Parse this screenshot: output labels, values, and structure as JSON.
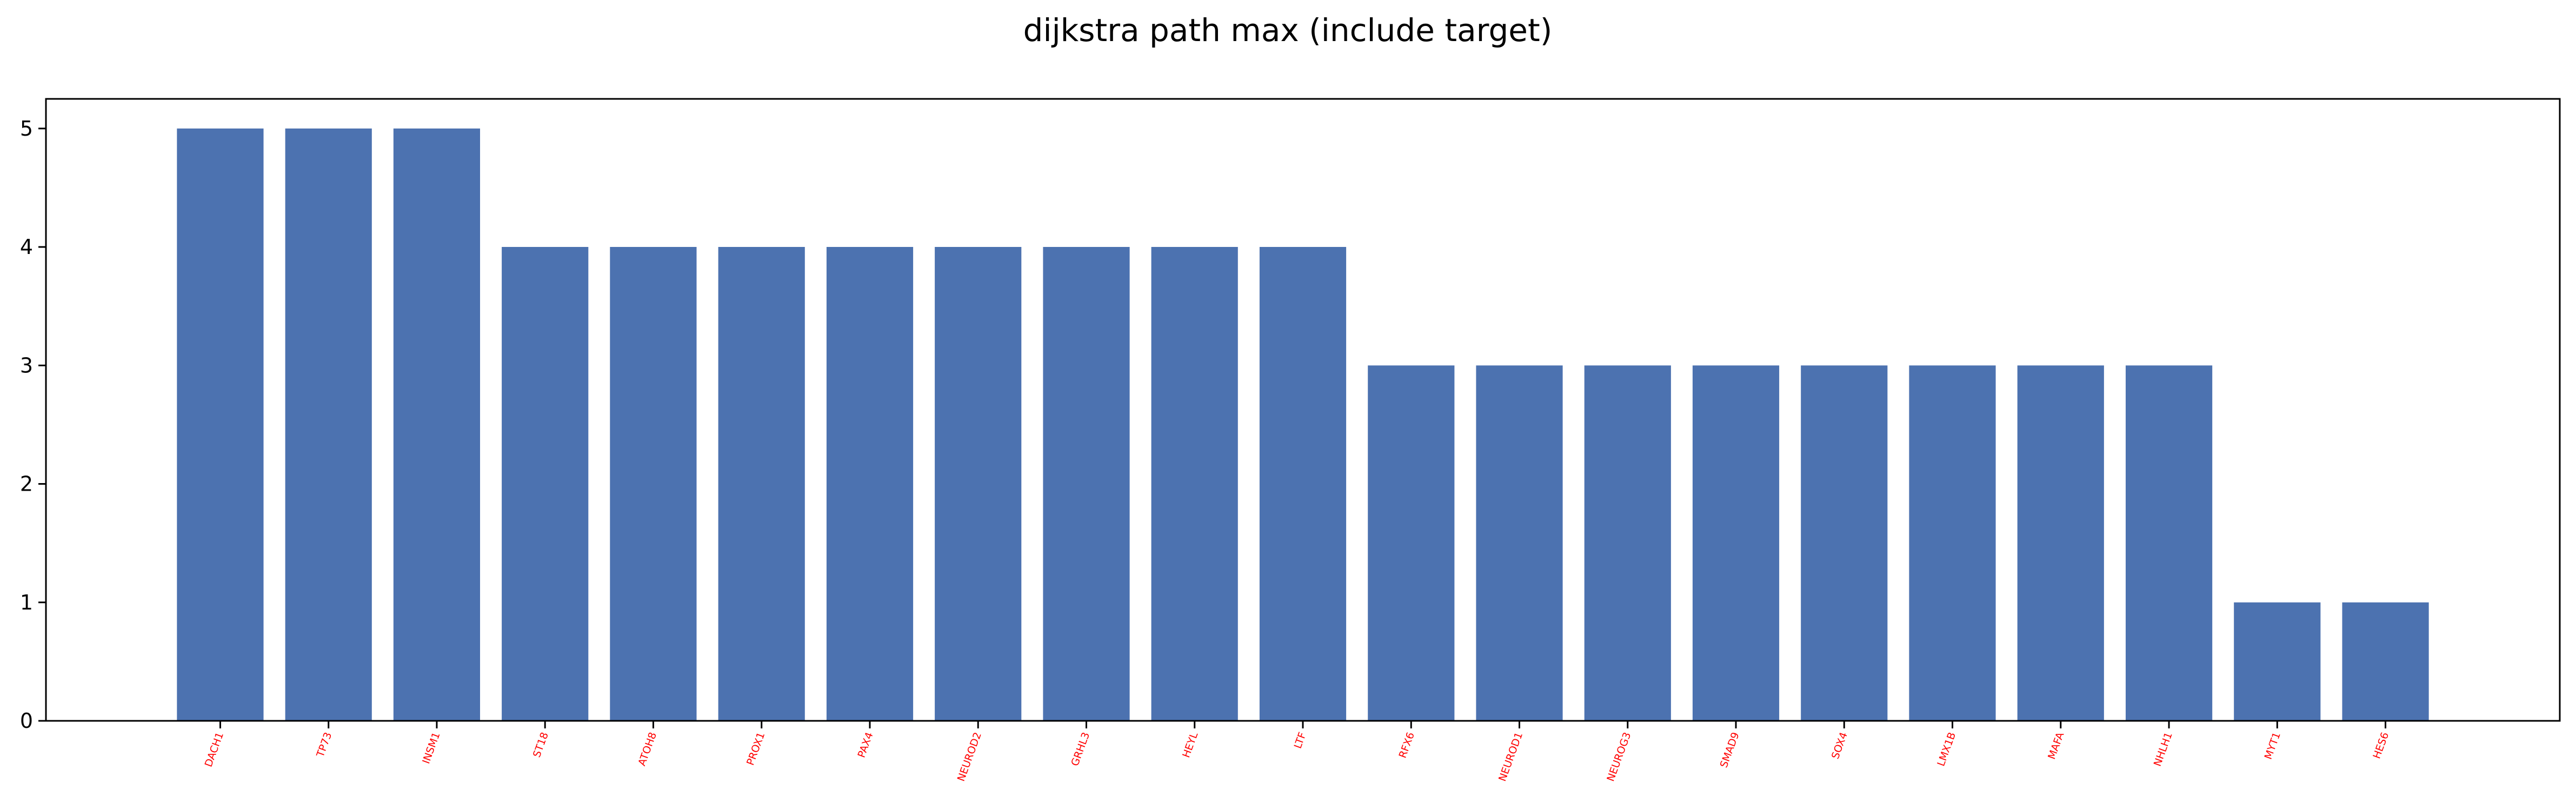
{
  "chart_data": {
    "type": "bar",
    "title": "dijkstra path max (include target)",
    "xlabel": "",
    "ylabel": "",
    "categories": [
      "DACH1",
      "TP73",
      "INSM1",
      "ST18",
      "ATOH8",
      "PROX1",
      "PAX4",
      "NEUROD2",
      "GRHL3",
      "HEYL",
      "LTF",
      "RFX6",
      "NEUROD1",
      "NEUROG3",
      "SMAD9",
      "SOX4",
      "LMX1B",
      "MAFA",
      "NHLH1",
      "MYT1",
      "HES6"
    ],
    "values": [
      5,
      5,
      5,
      4,
      4,
      4,
      4,
      4,
      4,
      4,
      4,
      3,
      3,
      3,
      3,
      3,
      3,
      3,
      3,
      1,
      1
    ],
    "ylim": [
      0,
      5.25
    ],
    "yticks": [
      "0",
      "1",
      "2",
      "3",
      "4",
      "5"
    ],
    "grid": false,
    "legend": "none",
    "colors": {
      "bar": "#4c72b0",
      "tick_label": "#ff0000",
      "axis": "#000000"
    }
  }
}
